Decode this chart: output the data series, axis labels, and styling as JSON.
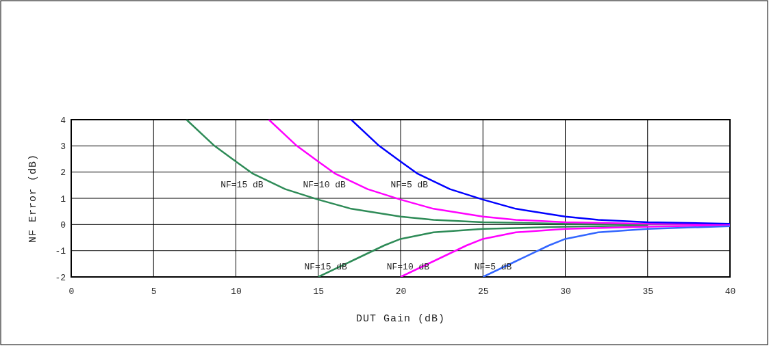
{
  "chart_data": {
    "type": "line",
    "xlabel": "DUT Gain (dB)",
    "ylabel": "NF Error (dB)",
    "xlim": [
      0,
      40
    ],
    "ylim": [
      -2,
      4
    ],
    "xticks": [
      0,
      5,
      10,
      15,
      20,
      25,
      30,
      35,
      40
    ],
    "yticks": [
      -2,
      -1,
      0,
      1,
      2,
      3,
      4
    ],
    "grid": true,
    "line_style": "solid",
    "marker": "none",
    "series": [
      {
        "name": "NF=15 dB",
        "color": "#2e8b57",
        "x": [
          7,
          8.7,
          10,
          11,
          13,
          15,
          17,
          20,
          22,
          25,
          30,
          35,
          40
        ],
        "values": [
          4,
          3,
          2.4,
          1.95,
          1.35,
          0.95,
          0.6,
          0.3,
          0.18,
          0.09,
          0.03,
          0.01,
          0
        ]
      },
      {
        "name": "NF=10 dB",
        "color": "#ff00ff",
        "x": [
          12,
          13.7,
          15,
          16,
          18,
          20,
          22,
          25,
          27,
          30,
          35,
          40
        ],
        "values": [
          4,
          3,
          2.4,
          1.95,
          1.35,
          0.95,
          0.6,
          0.3,
          0.18,
          0.09,
          0.03,
          0.01
        ]
      },
      {
        "name": "NF=5 dB",
        "color": "#0000ff",
        "x": [
          17,
          18.7,
          20,
          21,
          23,
          25,
          27,
          30,
          32,
          35,
          40
        ],
        "values": [
          4,
          3,
          2.4,
          1.95,
          1.35,
          0.95,
          0.6,
          0.3,
          0.18,
          0.09,
          0.03
        ]
      },
      {
        "name": "NF=15 dB",
        "color": "#2e8b57",
        "x": [
          15,
          17,
          19,
          20,
          22,
          25,
          30,
          35
        ],
        "values": [
          -2,
          -1.4,
          -0.8,
          -0.55,
          -0.3,
          -0.17,
          -0.08,
          -0.04
        ]
      },
      {
        "name": "NF=10 dB",
        "color": "#ff00ff",
        "x": [
          20,
          22,
          24,
          25,
          27,
          30,
          35,
          40
        ],
        "values": [
          -2,
          -1.4,
          -0.8,
          -0.55,
          -0.3,
          -0.17,
          -0.08,
          -0.03
        ]
      },
      {
        "name": "NF=5 dB",
        "color": "#3366ff",
        "x": [
          25,
          27,
          29,
          30,
          32,
          35,
          40
        ],
        "values": [
          -2,
          -1.4,
          -0.8,
          -0.55,
          -0.3,
          -0.17,
          -0.06
        ]
      }
    ]
  }
}
